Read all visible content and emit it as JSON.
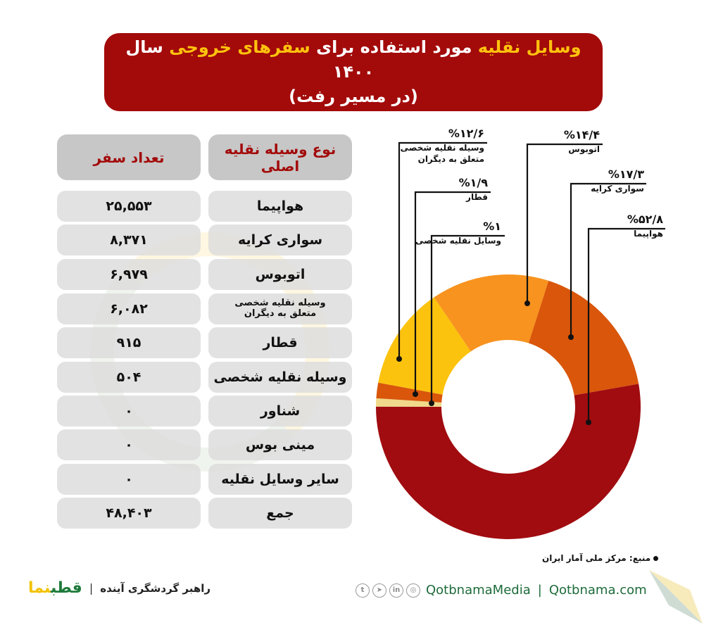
{
  "title": {
    "line1_parts": [
      {
        "text": "وسایل نقلیه",
        "highlight": true
      },
      {
        "text": " مورد استفاده برای ",
        "highlight": false
      },
      {
        "text": "سفرهای خروجی",
        "highlight": true
      },
      {
        "text": " سال ۱۴۰۰",
        "highlight": false
      }
    ],
    "line2": "(در مسیر رفت)"
  },
  "colors": {
    "title_bg": "#a30a0a",
    "highlight": "#ffc20e",
    "cell_bg": "#dcdcdc",
    "header_bg": "#c7c7c7",
    "header_text": "#a30a0a"
  },
  "table": {
    "headers": {
      "type": "نوع وسیله نقلیه اصلی",
      "count": "تعداد سفر"
    },
    "rows": [
      {
        "type": "هواپیما",
        "count": "۲۵,۵۵۳"
      },
      {
        "type": "سواری کرایه",
        "count": "۸,۳۷۱"
      },
      {
        "type": "اتوبوس",
        "count": "۶,۹۷۹"
      },
      {
        "type": "وسیله نقلیه شخصی متعلق به دیگران",
        "count": "۶,۰۸۲"
      },
      {
        "type": "قطار",
        "count": "۹۱۵"
      },
      {
        "type": "وسیله نقلیه شخصی",
        "count": "۵۰۴"
      },
      {
        "type": "شناور",
        "count": "۰"
      },
      {
        "type": "مینی بوس",
        "count": "۰"
      },
      {
        "type": "سایر وسایل نقلیه",
        "count": "۰"
      },
      {
        "type": "جمع",
        "count": "۴۸,۴۰۳"
      }
    ]
  },
  "chart_data": {
    "type": "pie",
    "subtype": "donut",
    "title": "وسایل نقلیه مورد استفاده برای سفرهای خروجی سال ۱۴۰۰ (در مسیر رفت)",
    "categories": [
      "هواپیما",
      "وسایل نقلیه شخصی",
      "قطار",
      "وسیله نقلیه شخصی متعلق به دیگران",
      "اتوبوس",
      "سواری کرایه"
    ],
    "values": [
      52.8,
      1,
      1.9,
      12.6,
      14.4,
      17.3
    ],
    "labels": [
      "%۵۲/۸",
      "%۱",
      "%۱/۹",
      "%۱۲/۶",
      "%۱۴/۴",
      "%۱۷/۳"
    ],
    "colors": [
      "#a00c10",
      "#f0d98a",
      "#d9560b",
      "#fcc30e",
      "#f7931e",
      "#d9560b"
    ],
    "unit": "%"
  },
  "callouts": [
    {
      "id": "others",
      "pct": "%۱۲/۶",
      "name": "وسیله نقلیه شخصی متعلق به دیگران"
    },
    {
      "id": "train",
      "pct": "%۱/۹",
      "name": "قطار"
    },
    {
      "id": "personal",
      "pct": "%۱",
      "name": "وسایل نقلیه شخصی"
    },
    {
      "id": "bus",
      "pct": "%۱۴/۴",
      "name": "اتوبوس"
    },
    {
      "id": "taxi",
      "pct": "%۱۷/۳",
      "name": "سواری کرایه"
    },
    {
      "id": "plane",
      "pct": "%۵۲/۸",
      "name": "هواپیما"
    }
  ],
  "source": "منبع: مرکز ملی آمار ایران",
  "footer": {
    "logo_green": "قطب",
    "logo_yellow": "نما",
    "tagline": "راهبر گردشگری آینده",
    "separator": "|",
    "social_icons": [
      "twitter-icon",
      "telegram-icon",
      "linkedin-icon",
      "instagram-icon"
    ],
    "social_glyphs": [
      "t",
      "➤",
      "in",
      "◎"
    ],
    "handle": "QotbnamaMedia",
    "website": "Qotbnama.com"
  }
}
